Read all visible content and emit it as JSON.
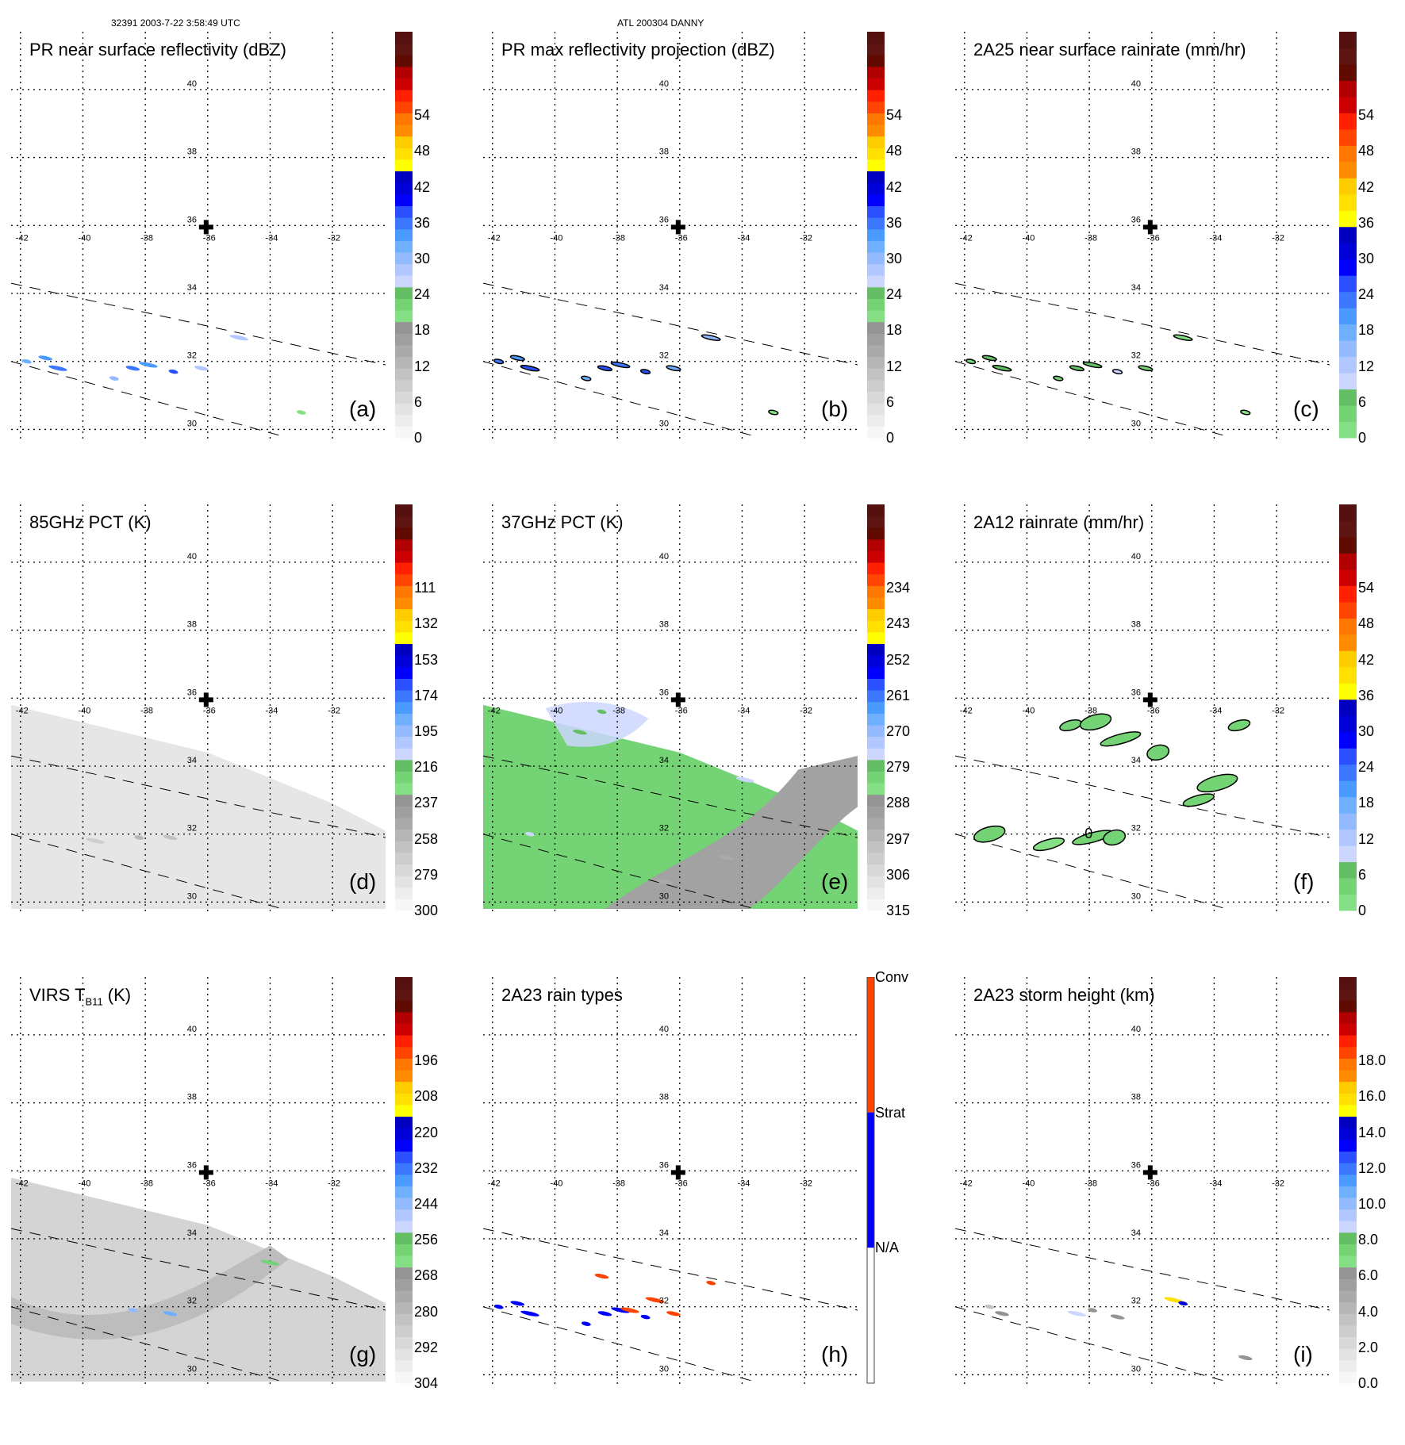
{
  "header": {
    "orbit_time": "32391 2003-7-22 3:58:49 UTC",
    "storm": "ATL 200304 DANNY"
  },
  "colors": {
    "scale": [
      "#f7f7f7",
      "#ededed",
      "#e3e3e3",
      "#d8d8d8",
      "#cdcdcd",
      "#c2c2c2",
      "#b6b6b6",
      "#aaaaaa",
      "#9f9f9f",
      "#949494",
      "#85e085",
      "#74d374",
      "#64bf64",
      "#ccd6ff",
      "#b0c8ff",
      "#94baff",
      "#6eb0ff",
      "#4a9bff",
      "#3c78ff",
      "#2b50ff",
      "#0000ff",
      "#0000d8",
      "#0000c0",
      "#ffff00",
      "#ffe000",
      "#ffcc00",
      "#ff8c00",
      "#ff7700",
      "#ff4400",
      "#ff2000",
      "#cc0000",
      "#b00000",
      "#600a00",
      "#5e1410",
      "#551010"
    ],
    "conv": "#ff4400",
    "strat": "#0000ff",
    "na": "#ffffff"
  },
  "map": {
    "lon_ticks": [
      "-42",
      "-40",
      "-38",
      "-36",
      "-34",
      "-32"
    ],
    "lat_ticks": [
      "40",
      "38",
      "36",
      "34",
      "32",
      "30"
    ],
    "center_marker": "storm-center-cross",
    "lon_range": [
      -42.3,
      -30.3
    ],
    "lat_range": [
      29.8,
      41.7
    ]
  },
  "chart_data": [
    {
      "type": "heatmap",
      "id": "a",
      "title": "PR near surface reflectivity (dBZ)",
      "panel_label": "(a)",
      "colorbar": {
        "ticks": [
          "0",
          "6",
          "12",
          "18",
          "24",
          "30",
          "36",
          "42",
          "48",
          "54"
        ],
        "range": [
          0,
          60
        ],
        "style": "full"
      },
      "swath": "none",
      "features": [
        {
          "lon": -41.8,
          "lat": 32.0,
          "value": 28
        },
        {
          "lon": -41.2,
          "lat": 32.1,
          "value": 30
        },
        {
          "lon": -40.8,
          "lat": 31.8,
          "value": 32
        },
        {
          "lon": -39.0,
          "lat": 31.5,
          "value": 26
        },
        {
          "lon": -38.4,
          "lat": 31.8,
          "value": 32
        },
        {
          "lon": -37.9,
          "lat": 31.9,
          "value": 30
        },
        {
          "lon": -37.1,
          "lat": 31.7,
          "value": 33
        },
        {
          "lon": -36.2,
          "lat": 31.8,
          "value": 24
        },
        {
          "lon": -35.0,
          "lat": 32.7,
          "value": 24
        },
        {
          "lon": -33.0,
          "lat": 30.5,
          "value": 18
        }
      ]
    },
    {
      "type": "heatmap",
      "id": "b",
      "title": "PR max reflectivity projection (dBZ)",
      "panel_label": "(b)",
      "colorbar": {
        "ticks": [
          "0",
          "6",
          "12",
          "18",
          "24",
          "30",
          "36",
          "42",
          "48",
          "54"
        ],
        "range": [
          0,
          60
        ],
        "style": "full"
      },
      "swath": "none",
      "features": [
        {
          "lon": -41.8,
          "lat": 32.0,
          "value": 32
        },
        {
          "lon": -41.2,
          "lat": 32.1,
          "value": 30
        },
        {
          "lon": -40.8,
          "lat": 31.8,
          "value": 33
        },
        {
          "lon": -39.0,
          "lat": 31.5,
          "value": 28
        },
        {
          "lon": -38.4,
          "lat": 31.8,
          "value": 34
        },
        {
          "lon": -37.9,
          "lat": 31.9,
          "value": 32
        },
        {
          "lon": -37.1,
          "lat": 31.7,
          "value": 34
        },
        {
          "lon": -36.2,
          "lat": 31.8,
          "value": 28
        },
        {
          "lon": -35.0,
          "lat": 32.7,
          "value": 26
        },
        {
          "lon": -33.0,
          "lat": 30.5,
          "value": 18
        }
      ]
    },
    {
      "type": "heatmap",
      "id": "c",
      "title": "2A25 near surface rainrate (mm/hr)",
      "panel_label": "(c)",
      "colorbar": {
        "ticks": [
          "0",
          "6",
          "12",
          "18",
          "24",
          "30",
          "36",
          "42",
          "48",
          "54"
        ],
        "range": [
          0,
          60
        ],
        "style": "nogray"
      },
      "swath": "none",
      "features": [
        {
          "lon": -41.8,
          "lat": 32.0,
          "value": 4
        },
        {
          "lon": -41.2,
          "lat": 32.1,
          "value": 5
        },
        {
          "lon": -40.8,
          "lat": 31.8,
          "value": 6
        },
        {
          "lon": -39.0,
          "lat": 31.5,
          "value": 3
        },
        {
          "lon": -38.4,
          "lat": 31.8,
          "value": 6
        },
        {
          "lon": -37.9,
          "lat": 31.9,
          "value": 5
        },
        {
          "lon": -37.1,
          "lat": 31.7,
          "value": 9
        },
        {
          "lon": -36.2,
          "lat": 31.8,
          "value": 3
        },
        {
          "lon": -35.0,
          "lat": 32.7,
          "value": 2
        },
        {
          "lon": -33.0,
          "lat": 30.5,
          "value": 2
        }
      ]
    },
    {
      "type": "heatmap",
      "id": "d",
      "title": "85GHz PCT (K)",
      "panel_label": "(d)",
      "colorbar": {
        "ticks": [
          "300",
          "279",
          "258",
          "237",
          "216",
          "195",
          "174",
          "153",
          "132",
          "111"
        ],
        "range": [
          300,
          90
        ],
        "style": "full"
      },
      "swath": "gray-light",
      "features": [
        {
          "lon": -38.2,
          "lat": 31.9,
          "value": 262
        },
        {
          "lon": -37.2,
          "lat": 31.9,
          "value": 268
        },
        {
          "lon": -39.6,
          "lat": 31.8,
          "value": 272
        }
      ]
    },
    {
      "type": "heatmap",
      "id": "e",
      "title": "37GHz PCT (K)",
      "panel_label": "(e)",
      "colorbar": {
        "ticks": [
          "315",
          "306",
          "297",
          "288",
          "279",
          "270",
          "261",
          "252",
          "243",
          "234"
        ],
        "range": [
          315,
          225
        ],
        "style": "full"
      },
      "swath": "green-gray",
      "features": [
        {
          "lon": -38.5,
          "lat": 35.6,
          "value": 283
        },
        {
          "lon": -39.2,
          "lat": 35.0,
          "value": 283
        },
        {
          "lon": -33.9,
          "lat": 33.6,
          "value": 281
        },
        {
          "lon": -40.8,
          "lat": 32.0,
          "value": 280
        },
        {
          "lon": -34.5,
          "lat": 31.3,
          "value": 296
        },
        {
          "lon": -36.5,
          "lat": 30.6,
          "value": 297
        }
      ]
    },
    {
      "type": "heatmap",
      "id": "f",
      "title": "2A12 rainrate (mm/hr)",
      "panel_label": "(f)",
      "colorbar": {
        "ticks": [
          "0",
          "6",
          "12",
          "18",
          "24",
          "30",
          "36",
          "42",
          "48",
          "54"
        ],
        "range": [
          0,
          60
        ],
        "style": "nogray"
      },
      "swath": "none",
      "contour_label": "0",
      "features": [
        {
          "lon": -38.6,
          "lat": 35.2,
          "value": 3
        },
        {
          "lon": -37.8,
          "lat": 35.3,
          "value": 3
        },
        {
          "lon": -37.0,
          "lat": 34.8,
          "value": 4
        },
        {
          "lon": -35.8,
          "lat": 34.4,
          "value": 3
        },
        {
          "lon": -34.5,
          "lat": 33.0,
          "value": 4
        },
        {
          "lon": -33.9,
          "lat": 33.5,
          "value": 4
        },
        {
          "lon": -33.2,
          "lat": 35.2,
          "value": 3
        },
        {
          "lon": -41.2,
          "lat": 32.0,
          "value": 4
        },
        {
          "lon": -37.9,
          "lat": 31.9,
          "value": 3
        },
        {
          "lon": -37.2,
          "lat": 31.9,
          "value": 3
        },
        {
          "lon": -39.3,
          "lat": 31.7,
          "value": 2
        }
      ]
    },
    {
      "type": "heatmap",
      "id": "g",
      "title_main": "VIRS T",
      "title_sub": "B11",
      "title_unit": " (K)",
      "panel_label": "(g)",
      "colorbar": {
        "ticks": [
          "304",
          "292",
          "280",
          "268",
          "256",
          "244",
          "232",
          "220",
          "208",
          "196"
        ],
        "range": [
          304,
          184
        ],
        "style": "full"
      },
      "swath": "gray-mid",
      "features": [
        {
          "lon": -38.4,
          "lat": 31.9,
          "value": 250
        },
        {
          "lon": -37.2,
          "lat": 31.8,
          "value": 248
        },
        {
          "lon": -34.0,
          "lat": 33.3,
          "value": 266
        }
      ]
    },
    {
      "type": "heatmap",
      "id": "h",
      "title": "2A23 rain types",
      "panel_label": "(h)",
      "colorbar": {
        "ticks": [
          "N/A",
          "Strat",
          "Conv"
        ],
        "style": "categorical"
      },
      "swath": "none",
      "features": [
        {
          "lon": -41.8,
          "lat": 32.0,
          "value": "Strat"
        },
        {
          "lon": -41.2,
          "lat": 32.1,
          "value": "Strat"
        },
        {
          "lon": -40.8,
          "lat": 31.8,
          "value": "Strat"
        },
        {
          "lon": -39.0,
          "lat": 31.5,
          "value": "Strat"
        },
        {
          "lon": -38.4,
          "lat": 31.8,
          "value": "Strat"
        },
        {
          "lon": -37.9,
          "lat": 31.9,
          "value": "Strat"
        },
        {
          "lon": -37.1,
          "lat": 31.7,
          "value": "Strat"
        },
        {
          "lon": -36.2,
          "lat": 31.8,
          "value": "Conv"
        },
        {
          "lon": -37.6,
          "lat": 31.9,
          "value": "Conv"
        },
        {
          "lon": -35.0,
          "lat": 32.7,
          "value": "Conv"
        },
        {
          "lon": -38.5,
          "lat": 32.9,
          "value": "Conv"
        },
        {
          "lon": -36.8,
          "lat": 32.2,
          "value": "Conv"
        }
      ]
    },
    {
      "type": "heatmap",
      "id": "i",
      "title": "2A23 storm height (km)",
      "panel_label": "(i)",
      "colorbar": {
        "ticks": [
          "0.0",
          "2.0",
          "4.0",
          "6.0",
          "8.0",
          "10.0",
          "12.0",
          "14.0",
          "16.0",
          "18.0"
        ],
        "range": [
          0,
          20
        ],
        "style": "full"
      },
      "swath": "none",
      "features": [
        {
          "lon": -41.2,
          "lat": 32.0,
          "value": 3
        },
        {
          "lon": -40.8,
          "lat": 31.8,
          "value": 5.5
        },
        {
          "lon": -38.4,
          "lat": 31.8,
          "value": 7.5
        },
        {
          "lon": -37.9,
          "lat": 31.9,
          "value": 5.5
        },
        {
          "lon": -37.1,
          "lat": 31.7,
          "value": 5.5
        },
        {
          "lon": -35.3,
          "lat": 32.2,
          "value": 14
        },
        {
          "lon": -35.0,
          "lat": 32.1,
          "value": 12.5
        },
        {
          "lon": -33.0,
          "lat": 30.5,
          "value": 5.5
        }
      ]
    }
  ]
}
